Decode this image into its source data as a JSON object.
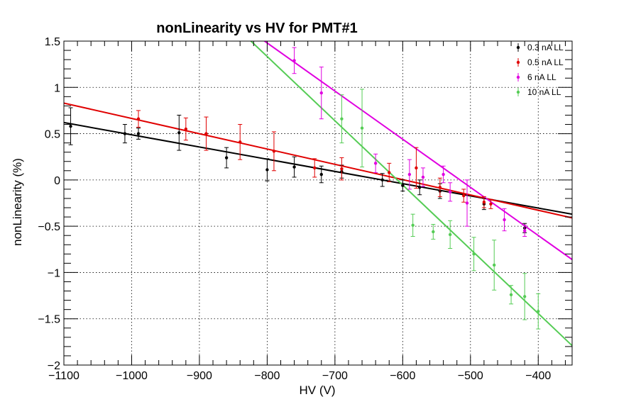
{
  "chart_data": {
    "type": "scatter",
    "title": "nonLinearity vs HV for PMT#1",
    "xlabel": "HV (V)",
    "ylabel": "nonLinearity (%)",
    "xlim": [
      -1100,
      -350
    ],
    "ylim": [
      -2,
      1.5
    ],
    "grid": true,
    "legend_position": "top-right",
    "x_ticks": [
      -1100,
      -1000,
      -900,
      -800,
      -700,
      -600,
      -500,
      -400
    ],
    "x_tick_labels": [
      "−1100",
      "−1000",
      "−900",
      "−800",
      "−700",
      "−600",
      "−500",
      "−400"
    ],
    "y_ticks": [
      -2,
      -1.5,
      -1,
      -0.5,
      0,
      0.5,
      1,
      1.5
    ],
    "y_tick_labels": [
      "−2",
      "−1.5",
      "−1",
      "−0.5",
      "0",
      "0.5",
      "1",
      "1.5"
    ],
    "series": [
      {
        "name": "0.3 nA LL",
        "color": "#000000",
        "fit": {
          "x": [
            -1100,
            -350
          ],
          "y": [
            0.62,
            -0.37
          ]
        },
        "points": [
          {
            "x": -1090,
            "y": 0.58,
            "err": 0.2
          },
          {
            "x": -1010,
            "y": 0.5,
            "err": 0.1
          },
          {
            "x": -990,
            "y": 0.5,
            "err": 0.06
          },
          {
            "x": -930,
            "y": 0.51,
            "err": 0.19
          },
          {
            "x": -860,
            "y": 0.24,
            "err": 0.11
          },
          {
            "x": -800,
            "y": 0.11,
            "err": 0.12
          },
          {
            "x": -760,
            "y": 0.14,
            "err": 0.11
          },
          {
            "x": -720,
            "y": 0.06,
            "err": 0.09
          },
          {
            "x": -690,
            "y": 0.09,
            "err": 0.07
          },
          {
            "x": -630,
            "y": 0.0,
            "err": 0.07
          },
          {
            "x": -600,
            "y": -0.06,
            "err": 0.06
          },
          {
            "x": -575,
            "y": -0.08,
            "err": 0.08
          },
          {
            "x": -545,
            "y": -0.12,
            "err": 0.08
          },
          {
            "x": -480,
            "y": -0.26,
            "err": 0.06
          },
          {
            "x": -420,
            "y": -0.52,
            "err": 0.05
          }
        ]
      },
      {
        "name": "0.5 nA LL",
        "color": "#e00000",
        "fit": {
          "x": [
            -1100,
            -350
          ],
          "y": [
            0.83,
            -0.41
          ]
        },
        "points": [
          {
            "x": -990,
            "y": 0.66,
            "err": 0.09
          },
          {
            "x": -920,
            "y": 0.55,
            "err": 0.12
          },
          {
            "x": -890,
            "y": 0.5,
            "err": 0.18
          },
          {
            "x": -840,
            "y": 0.41,
            "err": 0.19
          },
          {
            "x": -790,
            "y": 0.31,
            "err": 0.21
          },
          {
            "x": -730,
            "y": 0.13,
            "err": 0.1
          },
          {
            "x": -690,
            "y": 0.12,
            "err": 0.12
          },
          {
            "x": -620,
            "y": 0.08,
            "err": 0.1
          },
          {
            "x": -580,
            "y": 0.13,
            "err": 0.22
          },
          {
            "x": -545,
            "y": -0.08,
            "err": 0.1
          },
          {
            "x": -510,
            "y": -0.17,
            "err": 0.07
          },
          {
            "x": -480,
            "y": -0.24,
            "err": 0.06
          },
          {
            "x": -470,
            "y": -0.26,
            "err": 0.05
          }
        ]
      },
      {
        "name": "6 nA LL",
        "color": "#e000e0",
        "fit": {
          "x": [
            -900,
            -350
          ],
          "y": [
            2.0,
            -0.86
          ]
        },
        "points": [
          {
            "x": -760,
            "y": 1.29,
            "err": 0.14
          },
          {
            "x": -720,
            "y": 0.94,
            "err": 0.28
          },
          {
            "x": -640,
            "y": 0.18,
            "err": 0.1
          },
          {
            "x": -590,
            "y": 0.06,
            "err": 0.16
          },
          {
            "x": -570,
            "y": 0.03,
            "err": 0.1
          },
          {
            "x": -540,
            "y": 0.06,
            "err": 0.09
          },
          {
            "x": -530,
            "y": -0.13,
            "err": 0.1
          },
          {
            "x": -505,
            "y": -0.25,
            "err": 0.25
          },
          {
            "x": -450,
            "y": -0.43,
            "err": 0.12
          },
          {
            "x": -420,
            "y": -0.55,
            "err": 0.06
          }
        ]
      },
      {
        "name": "10 nA LL",
        "color": "#55cc55",
        "fit": {
          "x": [
            -860,
            -350
          ],
          "y": [
            1.75,
            -1.79
          ]
        },
        "points": [
          {
            "x": -690,
            "y": 0.66,
            "err": 0.26
          },
          {
            "x": -660,
            "y": 0.56,
            "err": 0.42
          },
          {
            "x": -585,
            "y": -0.49,
            "err": 0.12
          },
          {
            "x": -555,
            "y": -0.56,
            "err": 0.08
          },
          {
            "x": -530,
            "y": -0.59,
            "err": 0.15
          },
          {
            "x": -495,
            "y": -0.8,
            "err": 0.18
          },
          {
            "x": -465,
            "y": -0.92,
            "err": 0.27
          },
          {
            "x": -440,
            "y": -1.24,
            "err": 0.1
          },
          {
            "x": -420,
            "y": -1.26,
            "err": 0.25
          },
          {
            "x": -400,
            "y": -1.42,
            "err": 0.19
          }
        ]
      }
    ]
  }
}
